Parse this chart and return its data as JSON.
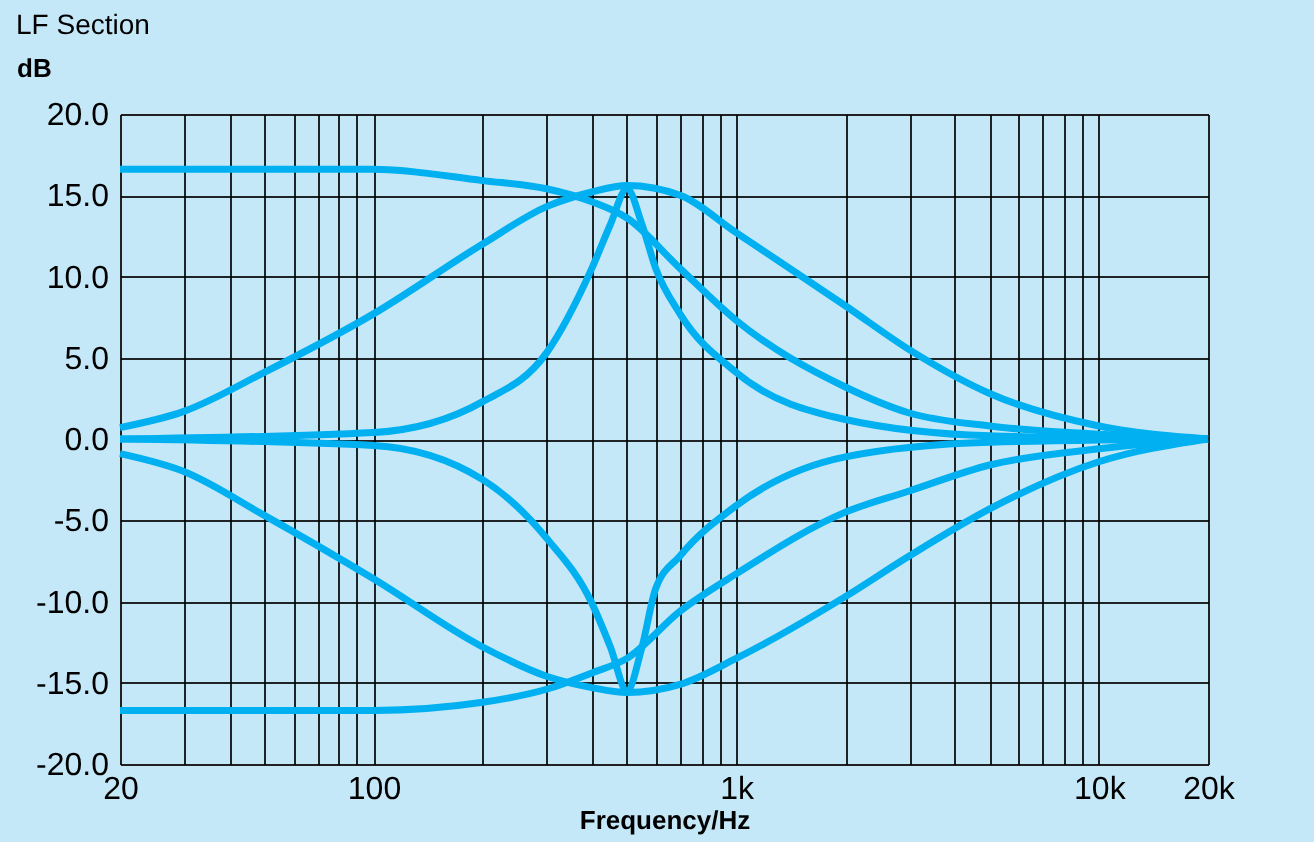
{
  "chart_data": {
    "type": "line",
    "title": "LF  Section",
    "xlabel": "Frequency/Hz",
    "ylabel": "dB",
    "log": "x",
    "grid": true,
    "legend": false,
    "marker": "none",
    "line_style": "solid",
    "xlim": [
      20,
      20000
    ],
    "xticks": [
      20,
      {
        "value": 30,
        "label": null
      },
      {
        "value": 40,
        "label": null
      },
      {
        "value": 50,
        "label": null
      },
      {
        "value": 60,
        "label": null
      },
      {
        "value": 70,
        "label": null
      },
      {
        "value": 80,
        "label": null
      },
      {
        "value": 90,
        "label": null
      },
      100,
      {
        "value": 200,
        "label": null
      },
      {
        "value": 300,
        "label": null
      },
      {
        "value": 400,
        "label": null
      },
      {
        "value": 500,
        "label": null
      },
      {
        "value": 600,
        "label": null
      },
      {
        "value": 700,
        "label": null
      },
      {
        "value": 800,
        "label": null
      },
      {
        "value": 900,
        "label": null
      },
      {
        "value": 1000,
        "label": "1k"
      },
      {
        "value": 2000,
        "label": null
      },
      {
        "value": 3000,
        "label": null
      },
      {
        "value": 4000,
        "label": null
      },
      {
        "value": 5000,
        "label": null
      },
      {
        "value": 6000,
        "label": null
      },
      {
        "value": 7000,
        "label": null
      },
      {
        "value": 8000,
        "label": null
      },
      {
        "value": 9000,
        "label": null
      },
      {
        "value": 10000,
        "label": "10k"
      },
      {
        "value": 20000,
        "label": "20k"
      }
    ],
    "ylim": [
      -20,
      20
    ],
    "yticks": [
      {
        "value": -20,
        "label": "-20.0"
      },
      {
        "value": -15,
        "label": "-15.0"
      },
      {
        "value": -10,
        "label": "-10.0"
      },
      {
        "value": -5,
        "label": "-5.0"
      },
      {
        "value": 0,
        "label": "0.0"
      },
      {
        "value": 5,
        "label": "5.0"
      },
      {
        "value": 10,
        "label": "10.0"
      },
      {
        "value": 15,
        "label": "15.0"
      },
      {
        "value": 20,
        "label": "20.0"
      }
    ],
    "series": [
      {
        "color": "#00b0f0",
        "x": [
          20,
          100,
          200,
          300,
          400,
          500,
          700,
          1000,
          2000,
          3000,
          5000,
          10000,
          20000
        ],
        "values": [
          16.6,
          16.6,
          15.9,
          15.4,
          14.6,
          13.6,
          10.5,
          7.3,
          3.2,
          1.6,
          0.8,
          0.3,
          0
        ]
      },
      {
        "color": "#00b0f0",
        "x": [
          20,
          30,
          50,
          100,
          200,
          300,
          400,
          500,
          700,
          1000,
          2000,
          3000,
          5000,
          10000,
          20000
        ],
        "values": [
          0.7,
          1.7,
          4.1,
          7.7,
          12.0,
          14.3,
          15.2,
          15.6,
          15.0,
          12.7,
          8.2,
          5.5,
          2.8,
          0.8,
          0
        ]
      },
      {
        "color": "#00b0f0",
        "x": [
          20,
          100,
          200,
          300,
          400,
          450,
          500,
          550,
          600,
          700,
          1000,
          2000,
          5000,
          20000
        ],
        "values": [
          0,
          0.4,
          2.3,
          5.3,
          10.5,
          13.2,
          15.4,
          13.2,
          10.5,
          7.7,
          4.1,
          1.2,
          0.2,
          0
        ]
      },
      {
        "color": "#00b0f0",
        "x": [
          20,
          100,
          200,
          300,
          400,
          500,
          700,
          1000,
          2000,
          3000,
          5000,
          10000,
          20000
        ],
        "values": [
          -16.7,
          -16.7,
          -16.2,
          -15.4,
          -14.4,
          -13.5,
          -10.6,
          -8.3,
          -4.5,
          -3.2,
          -1.6,
          -0.6,
          0
        ]
      },
      {
        "color": "#00b0f0",
        "x": [
          20,
          30,
          50,
          100,
          200,
          300,
          400,
          500,
          700,
          1000,
          2000,
          3000,
          5000,
          10000,
          20000
        ],
        "values": [
          -0.9,
          -2.0,
          -4.7,
          -8.6,
          -12.8,
          -14.6,
          -15.3,
          -15.6,
          -15.1,
          -13.5,
          -9.7,
          -7.2,
          -4.3,
          -1.4,
          0
        ]
      },
      {
        "color": "#00b0f0",
        "x": [
          20,
          100,
          200,
          300,
          400,
          450,
          500,
          550,
          600,
          700,
          1000,
          2000,
          5000,
          20000
        ],
        "values": [
          0,
          -0.4,
          -2.5,
          -6.1,
          -10.1,
          -12.8,
          -15.5,
          -12.8,
          -9.2,
          -7.2,
          -4.1,
          -1.1,
          -0.2,
          0
        ]
      }
    ]
  }
}
